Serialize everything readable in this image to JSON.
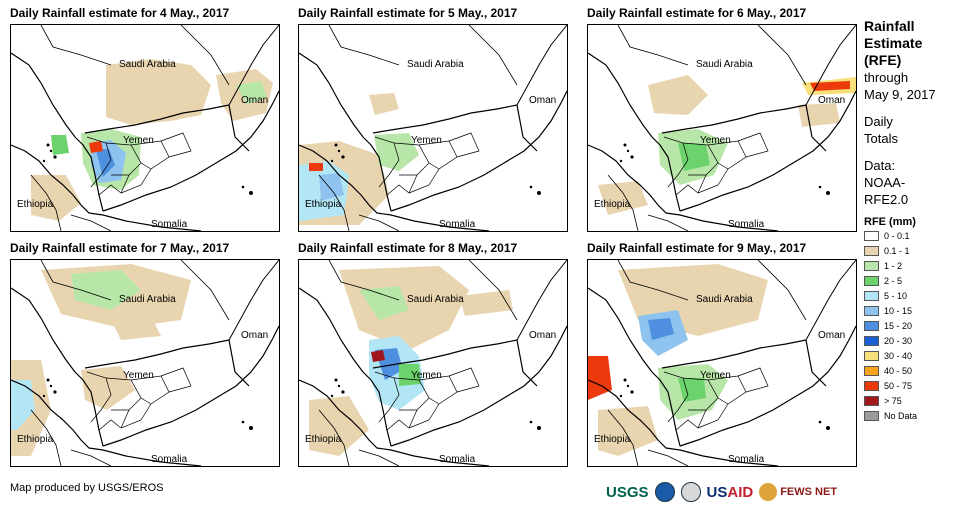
{
  "panels": [
    {
      "title": "Daily Rainfall estimate for 4 May., 2017",
      "rain": "p4"
    },
    {
      "title": "Daily Rainfall estimate for 5 May., 2017",
      "rain": "p5"
    },
    {
      "title": "Daily Rainfall estimate for 6 May., 2017",
      "rain": "p6"
    },
    {
      "title": "Daily Rainfall estimate for 7 May., 2017",
      "rain": "p7"
    },
    {
      "title": "Daily Rainfall estimate for 8 May., 2017",
      "rain": "p8"
    },
    {
      "title": "Daily Rainfall estimate for 9 May., 2017",
      "rain": "p9"
    }
  ],
  "map_labels": {
    "saudi_arabia": "Saudi Arabia",
    "oman": "Oman",
    "yemen": "Yemen",
    "ethiopia": "Ethiopia",
    "somalia": "Somalia"
  },
  "legend": {
    "title_line1": "Rainfall",
    "title_line2": "Estimate",
    "title_line3": "(RFE)",
    "through": "through",
    "through_date": "May 9, 2017",
    "totals_line1": "Daily",
    "totals_line2": "Totals",
    "data_line1": "Data:",
    "data_line2": "NOAA-",
    "data_line3": "RFE2.0",
    "rfe_header": "RFE (mm)",
    "classes": [
      {
        "label": "0 - 0.1",
        "color": "#ffffff"
      },
      {
        "label": "0.1 - 1",
        "color": "#e8d5b0"
      },
      {
        "label": "1 - 2",
        "color": "#b8e6a8"
      },
      {
        "label": "2 - 5",
        "color": "#6cd26c"
      },
      {
        "label": "5 - 10",
        "color": "#b3e6f5"
      },
      {
        "label": "10 - 15",
        "color": "#8ec3f0"
      },
      {
        "label": "15 - 20",
        "color": "#4f8fe0"
      },
      {
        "label": "20 - 30",
        "color": "#1f5fd6"
      },
      {
        "label": "30 - 40",
        "color": "#f8e07a"
      },
      {
        "label": "40 - 50",
        "color": "#f7a31c"
      },
      {
        "label": "50 - 75",
        "color": "#ec3a0c"
      },
      {
        "label": "> 75",
        "color": "#a0181c"
      },
      {
        "label": "No Data",
        "color": "#9a9a9a"
      }
    ]
  },
  "credit": "Map produced by USGS/EROS",
  "logos": {
    "usgs": "USGS",
    "usaid_us": "US",
    "usaid_aid": "AID",
    "fews": "FEWS NET"
  }
}
